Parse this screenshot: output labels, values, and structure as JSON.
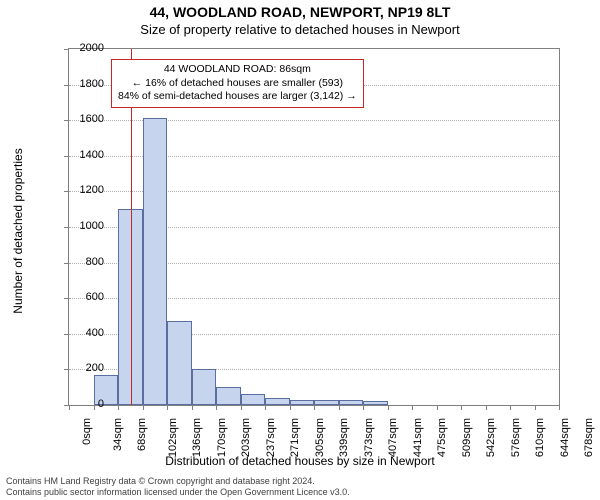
{
  "chart": {
    "type": "histogram",
    "title_main": "44, WOODLAND ROAD, NEWPORT, NP19 8LT",
    "title_sub": "Size of property relative to detached houses in Newport",
    "title_fontsize": 14,
    "subtitle_fontsize": 13,
    "ylabel": "Number of detached properties",
    "xlabel": "Distribution of detached houses by size in Newport",
    "label_fontsize": 12,
    "tick_fontsize": 11,
    "ylim": [
      0,
      2000
    ],
    "ytick_step": 200,
    "yticks": [
      0,
      200,
      400,
      600,
      800,
      1000,
      1200,
      1400,
      1600,
      1800,
      2000
    ],
    "xticks": [
      "0sqm",
      "34sqm",
      "68sqm",
      "102sqm",
      "136sqm",
      "170sqm",
      "203sqm",
      "237sqm",
      "271sqm",
      "305sqm",
      "339sqm",
      "373sqm",
      "407sqm",
      "441sqm",
      "475sqm",
      "509sqm",
      "542sqm",
      "576sqm",
      "610sqm",
      "644sqm",
      "678sqm"
    ],
    "values": [
      0,
      170,
      1100,
      1615,
      470,
      200,
      100,
      60,
      40,
      30,
      30,
      30,
      25,
      0,
      0,
      0,
      0,
      0,
      0,
      0
    ],
    "bar_color": "#c7d4ee",
    "bar_border": "#5a6fa0",
    "grid_color": "#b0b0b0",
    "axis_color": "#808080",
    "background_color": "#ffffff",
    "marker": {
      "value_sqm": 86,
      "line_color": "#c62828",
      "callout_border": "#c62828",
      "callout_lines": [
        "44 WOODLAND ROAD: 86sqm",
        "← 16% of detached houses are smaller (593)",
        "84% of semi-detached houses are larger (3,142) →"
      ]
    }
  },
  "attribution": {
    "line1": "Contains HM Land Registry data © Crown copyright and database right 2024.",
    "line2": "Contains public sector information licensed under the Open Government Licence v3.0."
  }
}
